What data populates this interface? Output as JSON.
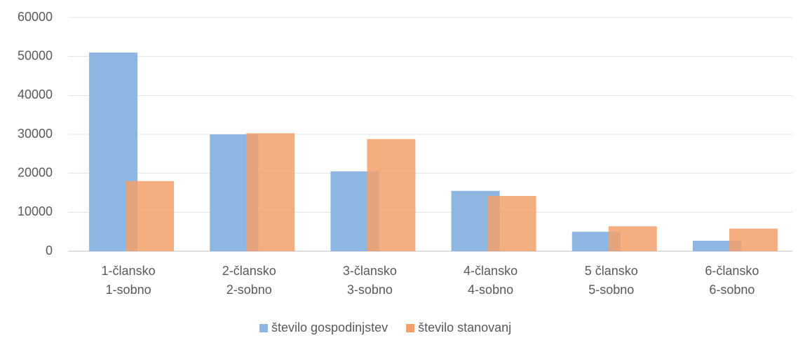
{
  "chart_data": {
    "type": "bar",
    "categories": [
      [
        "1-člansko",
        "1-sobno"
      ],
      [
        "2-člansko",
        "2-sobno"
      ],
      [
        "3-člansko",
        "3-sobno"
      ],
      [
        "4-člansko",
        "4-sobno"
      ],
      [
        "5 člansko",
        "5-sobno"
      ],
      [
        "6-člansko",
        "6-sobno"
      ]
    ],
    "series": [
      {
        "name": "število gospodinjstev",
        "color": "#8db6e2",
        "values": [
          51000,
          30000,
          20500,
          15500,
          5000,
          2700
        ]
      },
      {
        "name": "število stanovanj",
        "color": "#f2a06a",
        "values": [
          18000,
          30300,
          28800,
          14200,
          6400,
          5800
        ]
      }
    ],
    "ylim": [
      0,
      60000
    ],
    "yticks": [
      0,
      10000,
      20000,
      30000,
      40000,
      50000,
      60000
    ],
    "grid": true,
    "legend": "bottom"
  }
}
